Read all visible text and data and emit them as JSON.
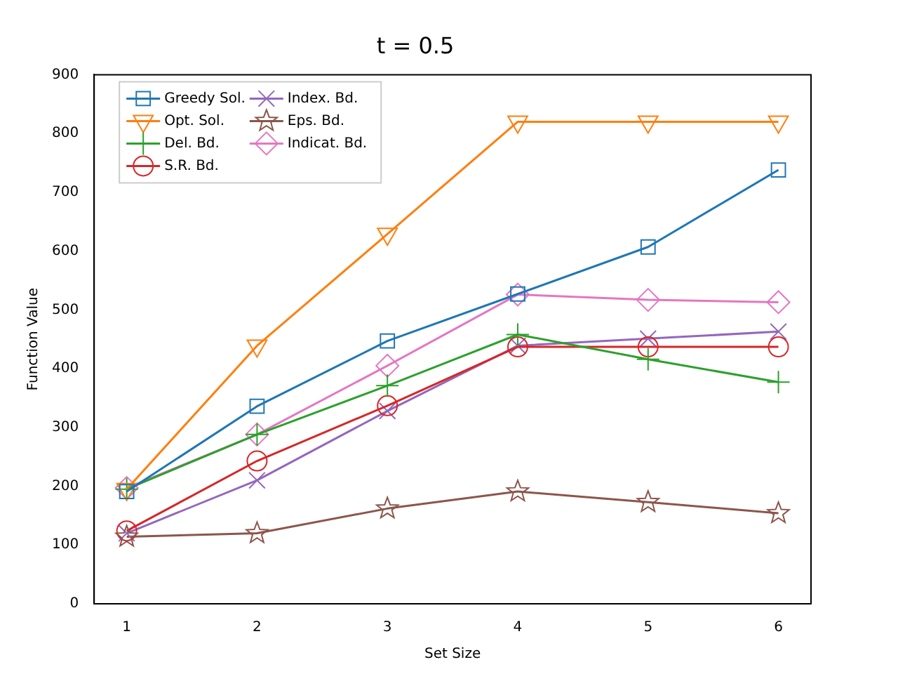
{
  "chart_data": {
    "type": "line",
    "title": "t = 0.5",
    "xlabel": "Set Size",
    "ylabel": "Function Value",
    "x": [
      1,
      2,
      3,
      4,
      5,
      6
    ],
    "xlim": [
      0.75,
      6.25
    ],
    "xticks": [
      1,
      2,
      3,
      4,
      5,
      6
    ],
    "ylim": [
      0,
      900
    ],
    "yticks": [
      0,
      100,
      200,
      300,
      400,
      500,
      600,
      700,
      800,
      900
    ],
    "grid": false,
    "legend": "top left",
    "line_style": "solid",
    "series": [
      {
        "name": "Greedy Sol.",
        "color": "#1f77b4",
        "marker": "square",
        "values": [
          191,
          336,
          447,
          527,
          607,
          738
        ]
      },
      {
        "name": "Opt. Sol.",
        "color": "#ff7f0e",
        "marker": "triangle_down",
        "values": [
          195,
          439,
          629,
          820,
          820,
          820
        ]
      },
      {
        "name": "Del. Bd.",
        "color": "#2ca02c",
        "marker": "plus",
        "values": [
          195,
          288,
          371,
          458,
          416,
          377
        ]
      },
      {
        "name": "S.R. Bd.",
        "color": "#d62728",
        "marker": "circle",
        "values": [
          124,
          243,
          337,
          437,
          437,
          437
        ]
      },
      {
        "name": "Index. Bd.",
        "color": "#9467bd",
        "marker": "cross",
        "values": [
          120,
          210,
          328,
          439,
          451,
          463
        ]
      },
      {
        "name": "Eps. Bd.",
        "color": "#8c564b",
        "marker": "star",
        "values": [
          114,
          120,
          162,
          191,
          173,
          154
        ]
      },
      {
        "name": "Indicat. Bd.",
        "color": "#e377c2",
        "marker": "diamond",
        "values": [
          197,
          288,
          405,
          526,
          517,
          513
        ]
      }
    ]
  }
}
